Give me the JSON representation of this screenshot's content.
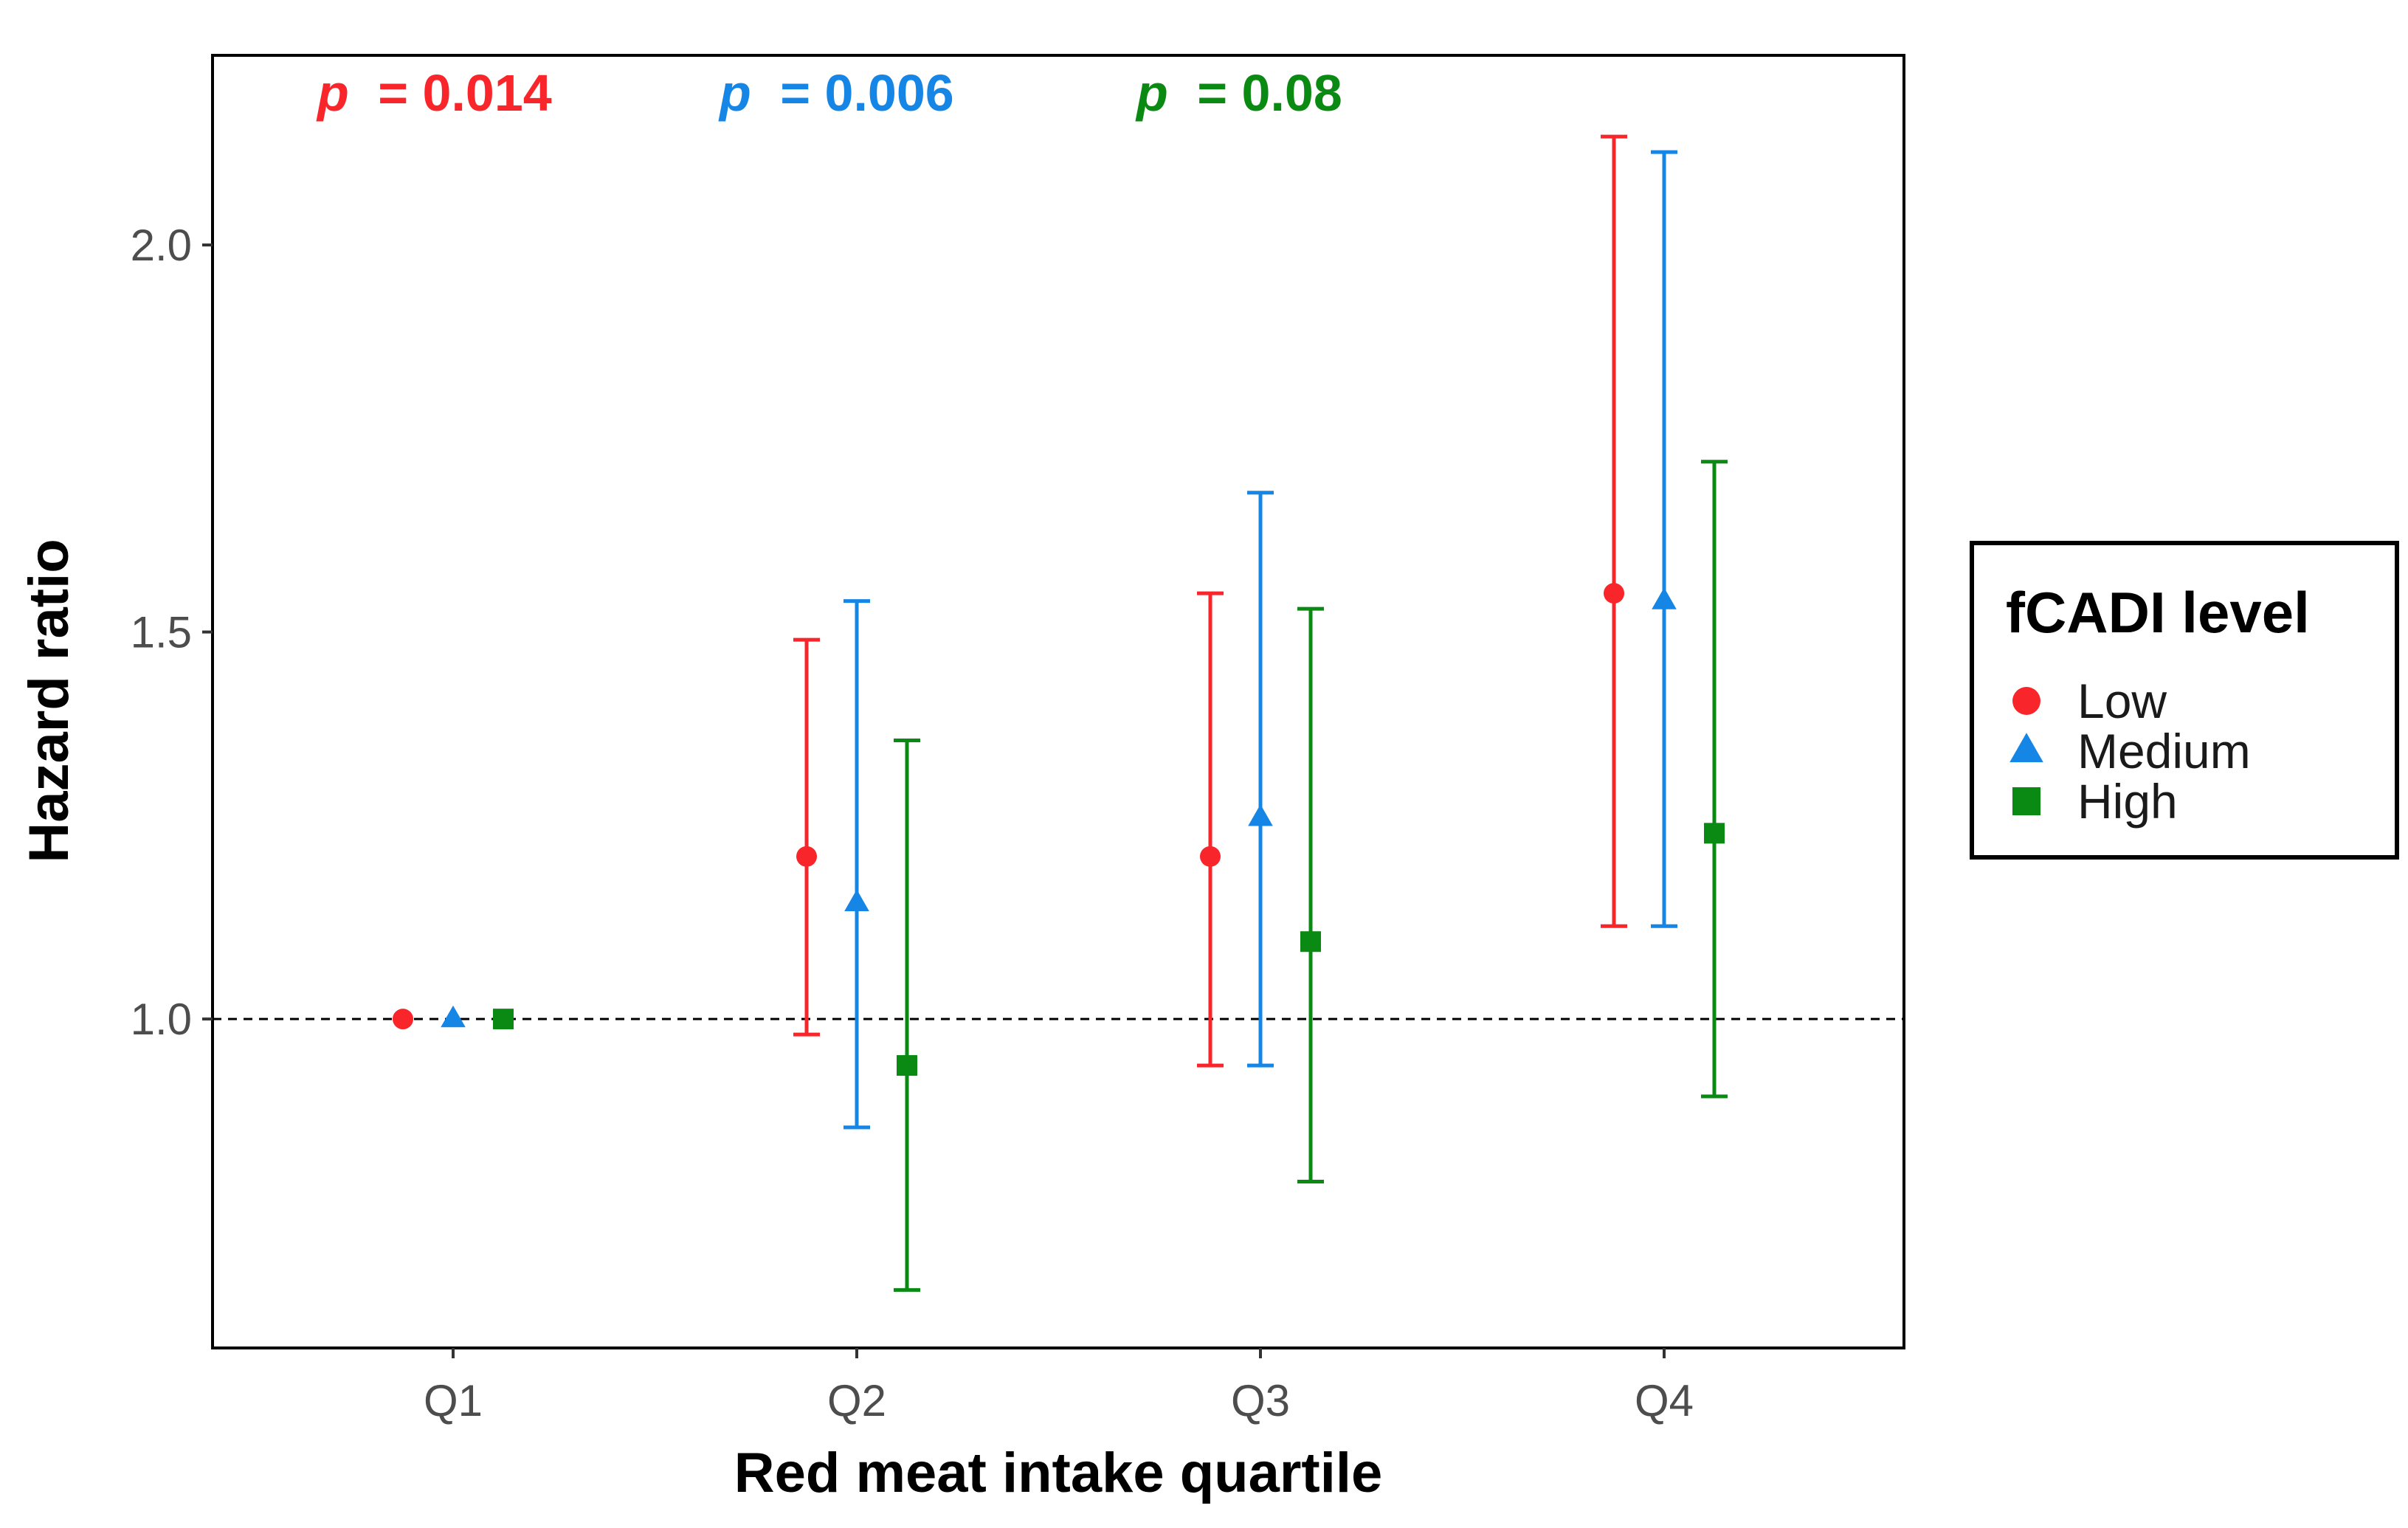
{
  "chart_data": {
    "type": "scatter",
    "subtype": "point-with-error-bars",
    "xlabel": "Red meat intake quartile",
    "ylabel": "Hazard ratio",
    "categories": [
      "Q1",
      "Q2",
      "Q3",
      "Q4"
    ],
    "ylim": [
      0.575,
      2.245
    ],
    "yticks": [
      1.0,
      1.5,
      2.0
    ],
    "ytick_labels": [
      "1.0",
      "1.5",
      "2.0"
    ],
    "reference_line": 1.0,
    "grid": false,
    "legend": {
      "title": "fCADI level",
      "position": "right"
    },
    "series": [
      {
        "name": "Low",
        "color": "#f8262a",
        "marker": "circle",
        "values": [
          1.0,
          1.21,
          1.21,
          1.55
        ],
        "lower": [
          1.0,
          0.98,
          0.94,
          1.12
        ],
        "upper": [
          1.0,
          1.49,
          1.55,
          2.14
        ]
      },
      {
        "name": "Medium",
        "color": "#1585e6",
        "marker": "triangle",
        "values": [
          1.0,
          1.15,
          1.26,
          1.54
        ],
        "lower": [
          1.0,
          0.86,
          0.94,
          1.12
        ],
        "upper": [
          1.0,
          1.54,
          1.68,
          2.12
        ]
      },
      {
        "name": "High",
        "color": "#0a8a12",
        "marker": "square",
        "values": [
          1.0,
          0.94,
          1.1,
          1.24
        ],
        "lower": [
          1.0,
          0.65,
          0.79,
          0.9
        ],
        "upper": [
          1.0,
          1.36,
          1.53,
          1.72
        ]
      }
    ],
    "annotations": [
      {
        "p_symbol": "p",
        "text": "= 0.014",
        "color": "#f8262a"
      },
      {
        "p_symbol": "p",
        "text": "= 0.006",
        "color": "#1585e6"
      },
      {
        "p_symbol": "p",
        "text": "= 0.08",
        "color": "#0a8a12"
      }
    ]
  }
}
